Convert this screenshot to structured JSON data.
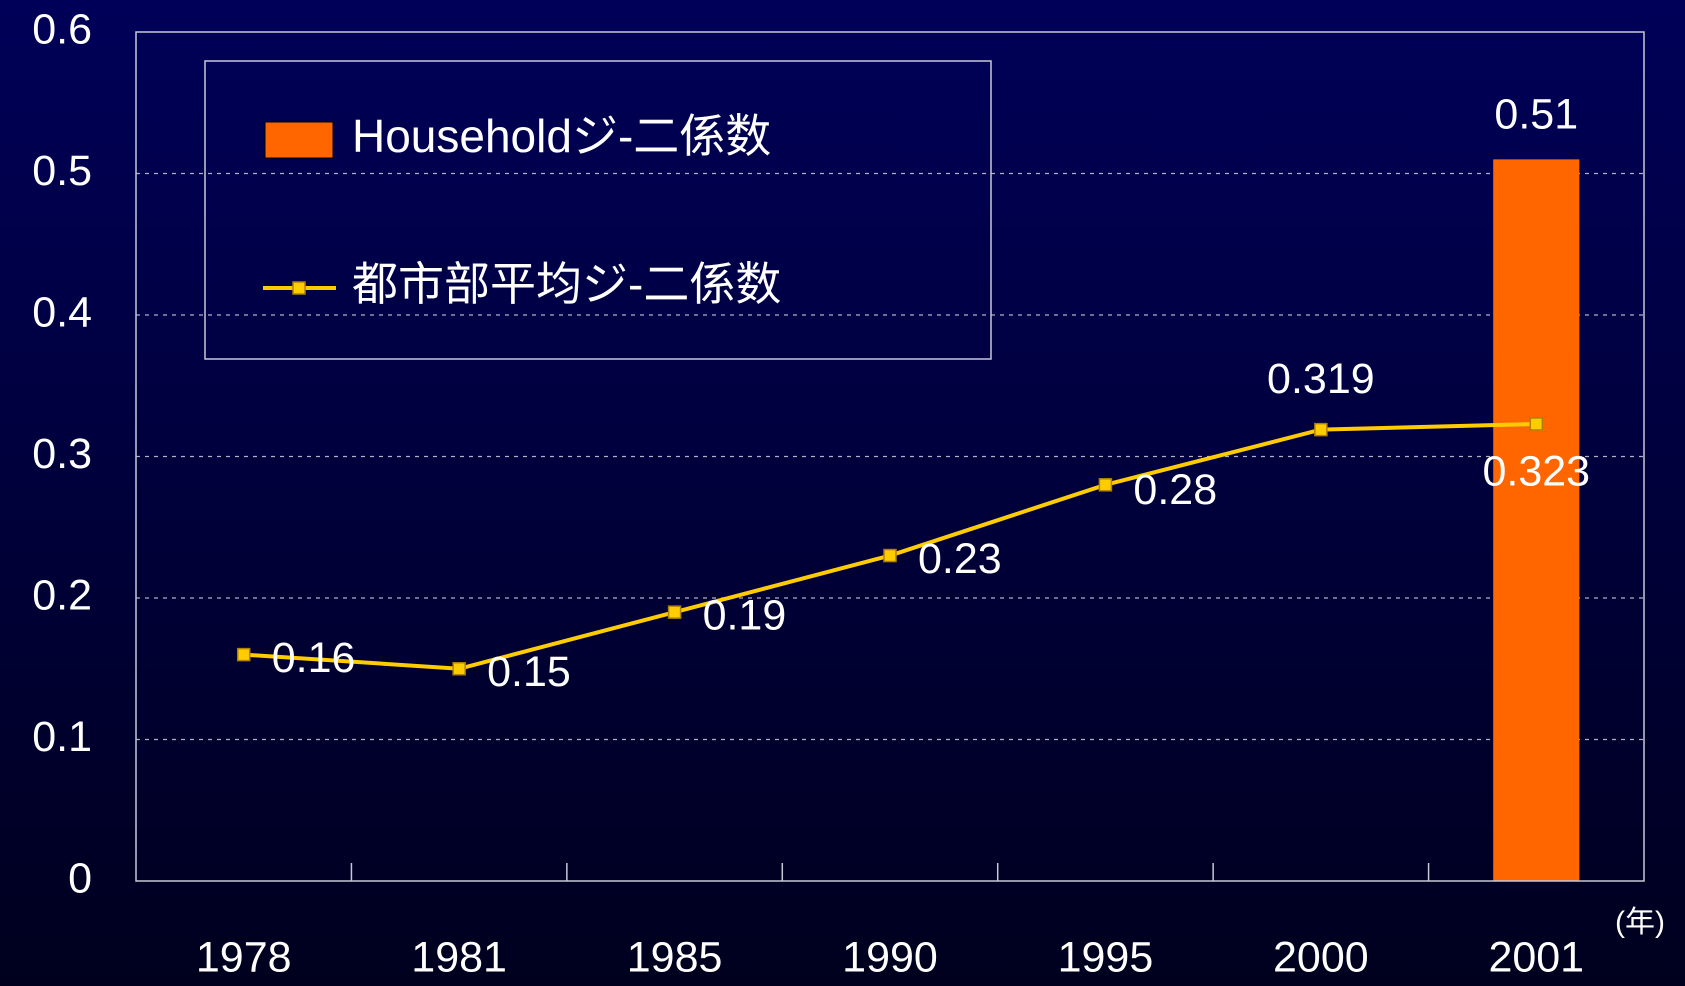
{
  "chart_data": {
    "type": "combo",
    "categories": [
      "1978",
      "1981",
      "1985",
      "1990",
      "1995",
      "2000",
      "2001"
    ],
    "series": [
      {
        "name": "Householdジ-二係数",
        "type": "bar",
        "color": "#ff6600",
        "values": [
          null,
          null,
          null,
          null,
          null,
          null,
          0.51
        ]
      },
      {
        "name": "都市部平均ジ-二係数",
        "type": "line",
        "color": "#ffcc00",
        "values": [
          0.16,
          0.15,
          0.19,
          0.23,
          0.28,
          0.319,
          0.323
        ]
      }
    ],
    "x_label": "(年)",
    "ylim": [
      0,
      0.6
    ],
    "yticks": [
      0,
      0.1,
      0.2,
      0.3,
      0.4,
      0.5,
      0.6
    ],
    "grid": true,
    "legend": "top-left"
  }
}
